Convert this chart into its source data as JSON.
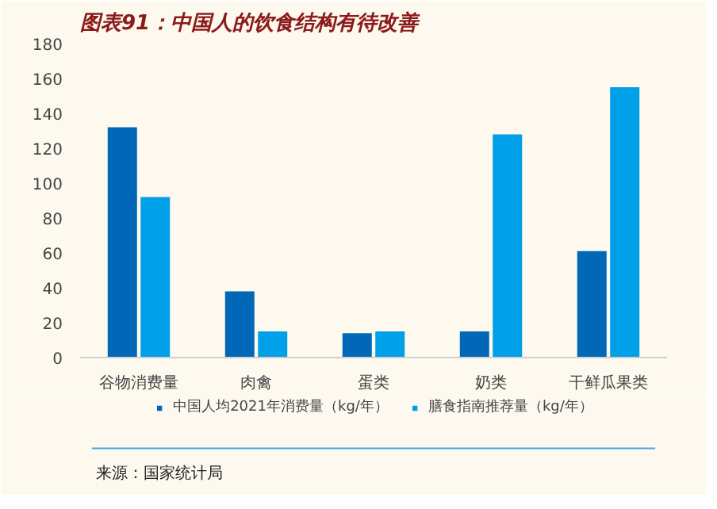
{
  "chart_data": {
    "type": "bar",
    "title": "图表91：中国人的饮食结构有待改善",
    "categories": [
      "谷物消费量",
      "肉禽",
      "蛋类",
      "奶类",
      "干鲜瓜果类"
    ],
    "series": [
      {
        "name": "中国人均2021年消费量（kg/年）",
        "color": "#0068b7",
        "values": [
          132,
          38,
          14,
          15,
          61
        ]
      },
      {
        "name": "膳食指南推荐量（kg/年）",
        "color": "#00a0e9",
        "values": [
          92,
          15,
          15,
          128,
          155
        ]
      }
    ],
    "ylim": [
      0,
      180
    ],
    "yticks": [
      0,
      20,
      40,
      60,
      80,
      100,
      120,
      140,
      160,
      180
    ],
    "grid": false,
    "legend": "bottom",
    "annotations": [
      "来源：国家统计局"
    ]
  }
}
